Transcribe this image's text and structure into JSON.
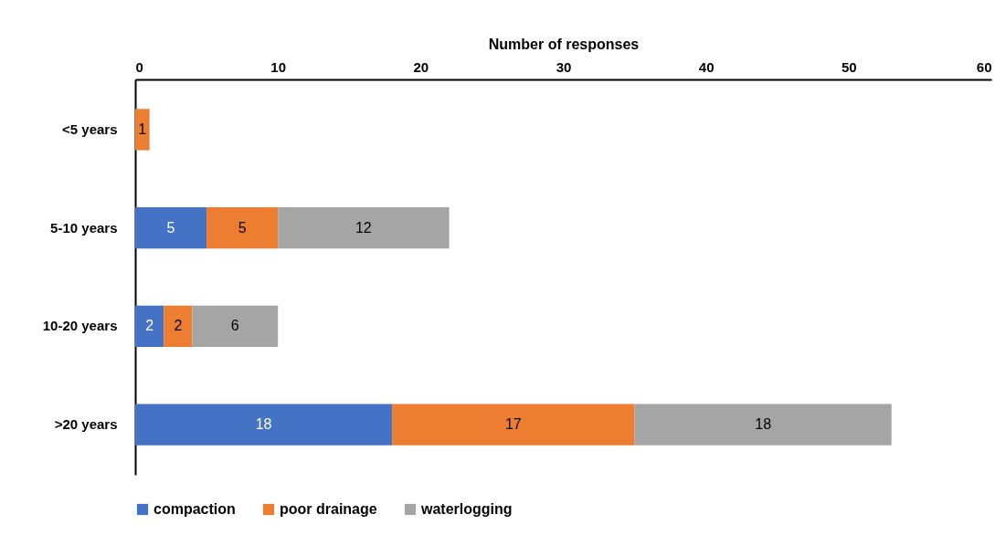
{
  "chart_data": {
    "type": "bar",
    "orientation": "horizontal",
    "stacked": true,
    "xlabel": "Number of responses",
    "categories": [
      "<5 years",
      "5-10 years",
      "10-20 years",
      ">20 years"
    ],
    "series": [
      {
        "name": "compaction",
        "color": "#4472c4",
        "values": [
          null,
          5,
          2,
          18
        ]
      },
      {
        "name": "poor drainage",
        "color": "#ed7d31",
        "values": [
          1,
          5,
          2,
          17
        ]
      },
      {
        "name": "waterlogging",
        "color": "#a5a5a5",
        "values": [
          null,
          12,
          6,
          18
        ]
      }
    ],
    "xlim": [
      0,
      60
    ],
    "xticks": [
      0,
      10,
      20,
      30,
      40,
      50,
      60
    ],
    "grid": false,
    "legend": "bottom",
    "data_labels": true
  }
}
